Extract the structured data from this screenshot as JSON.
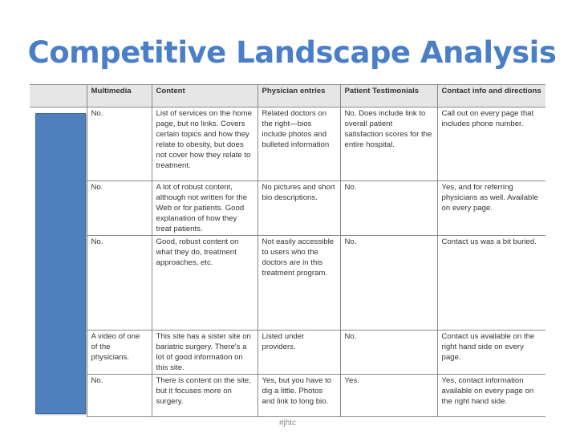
{
  "title": "Competitive Landscape Analysis",
  "footer": "#jhtc",
  "accent_color": "#4a7ec7",
  "table": {
    "headers": [
      "",
      "Multimedia",
      "Content",
      "Physician entries",
      "Patient Testimonials",
      "Contact info and directions"
    ],
    "rows": [
      [
        "",
        "No.",
        "List of services on the home page, but no links. Covers certain topics and how they relate to obesity, but does not cover how they relate to treatment.",
        "Related doctors on the right—bios include photos and bulleted information",
        "No. Does include link to overall patient satisfaction scores for the entire hospital.",
        "Call out on every page that includes phone number."
      ],
      [
        "",
        "No.",
        "A lot of robust content, although not written for the Web or for patients. Good explanation of how they treat patients.",
        "No pictures and short bio descriptions.",
        "No.",
        "Yes, and for referring physicians as well. Available on every page."
      ],
      [
        "",
        "No.",
        "Good, robust content on what they do, treatment approaches, etc.",
        "Not easily accessible to users who the doctors are in this treatment program.",
        "No.",
        "Contact us was a bit buried."
      ],
      [
        "",
        "A video of one of the physicians.",
        "This site has a sister site on bariatric surgery. There's a lot of good information on this site.",
        "Listed under providers.",
        "No.",
        "Contact us available on the right hand side on every page."
      ],
      [
        "",
        "No.",
        "There is content on the site, but it focuses more on surgery.",
        "Yes, but you have to dig a little. Photos and link to long bio.",
        "Yes.",
        "Yes, contact information available on every page on the right hand side."
      ]
    ]
  }
}
